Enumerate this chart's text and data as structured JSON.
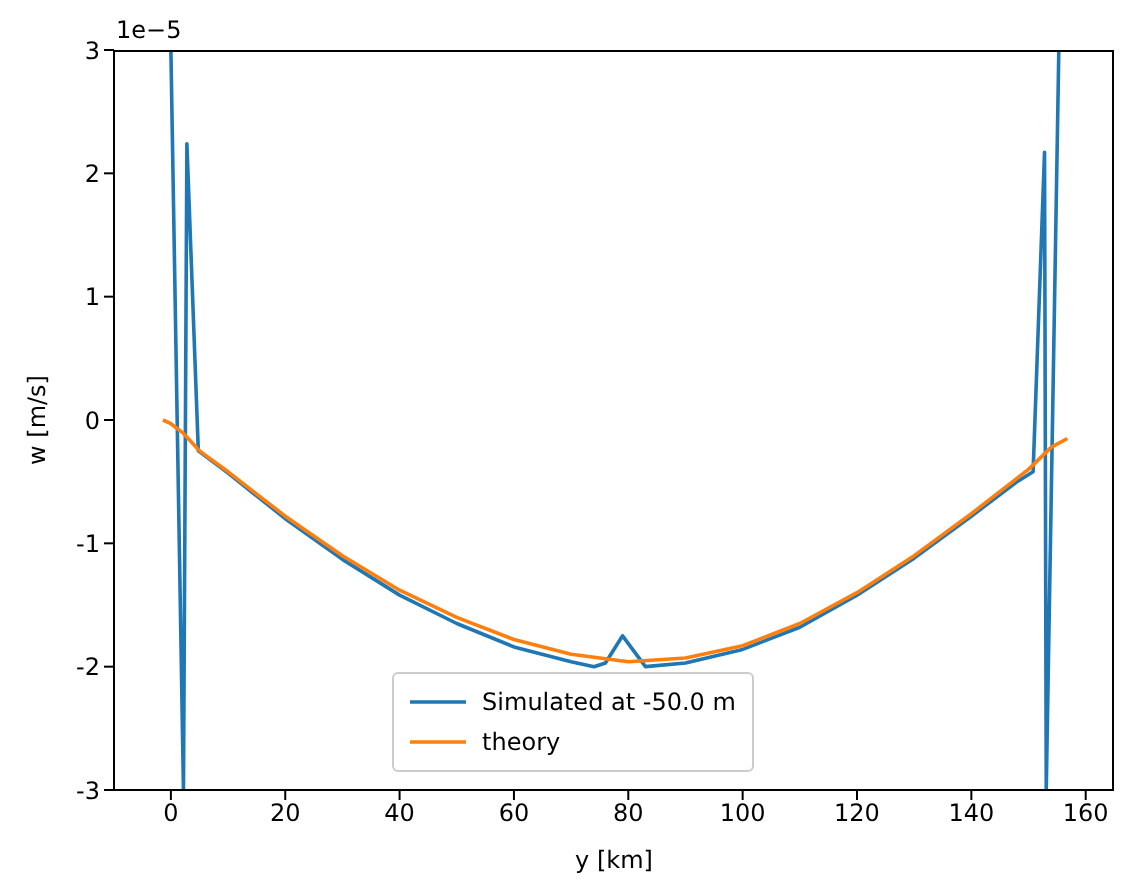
{
  "chart_data": {
    "type": "line",
    "xlabel": "y [km]",
    "ylabel": "w [m/s]",
    "annotations": [
      "1e−5"
    ],
    "xlim": [
      -9.95,
      164.95
    ],
    "xticks": [
      0,
      20,
      40,
      60,
      80,
      100,
      120,
      140,
      160
    ],
    "ylim": [
      -3,
      3
    ],
    "yticks": [
      -3,
      -2,
      -1,
      0,
      1,
      2,
      3
    ],
    "grid": false,
    "legend": "bottom",
    "marker": "none",
    "line_style": "solid",
    "series": [
      {
        "name": "Simulated at -50.0 m",
        "color": "#1f77b4",
        "x": [
          0,
          2.2,
          2.8,
          4.8,
          10,
          20,
          30,
          40,
          50,
          60,
          70,
          74,
          76,
          79,
          83,
          90,
          100,
          110,
          120,
          130,
          140,
          148,
          150.8,
          152.8,
          153.1,
          155.3
        ],
        "values": [
          3,
          -3,
          2.24,
          -0.25,
          -0.43,
          -0.8,
          -1.13,
          -1.42,
          -1.65,
          -1.84,
          -1.96,
          -2.0,
          -1.97,
          -1.75,
          -2.0,
          -1.97,
          -1.86,
          -1.68,
          -1.42,
          -1.12,
          -0.78,
          -0.5,
          -0.42,
          2.17,
          -3,
          3
        ]
      },
      {
        "name": "theory",
        "color": "#ff7f0e",
        "x": [
          -1.4,
          0,
          2,
          5,
          10,
          20,
          30,
          40,
          50,
          60,
          70,
          80,
          90,
          100,
          110,
          120,
          130,
          140,
          150,
          154,
          156.8
        ],
        "values": [
          0,
          -0.03,
          -0.1,
          -0.25,
          -0.42,
          -0.78,
          -1.1,
          -1.38,
          -1.6,
          -1.78,
          -1.9,
          -1.96,
          -1.93,
          -1.83,
          -1.65,
          -1.4,
          -1.1,
          -0.76,
          -0.4,
          -0.22,
          -0.15
        ]
      }
    ]
  }
}
